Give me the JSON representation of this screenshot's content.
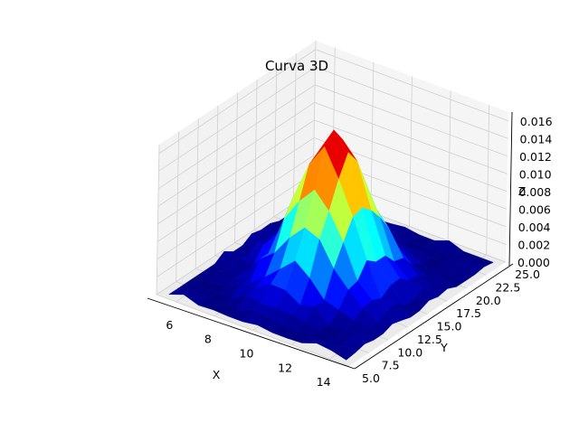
{
  "chart_data": {
    "type": "surface3d",
    "title": "Curva 3D",
    "xlabel": "X",
    "ylabel": "Y",
    "zlabel": "Z",
    "xlim": [
      5,
      15
    ],
    "ylim": [
      5,
      25
    ],
    "zlim": [
      0,
      0.017
    ],
    "xticks": [
      "6",
      "8",
      "10",
      "12",
      "14"
    ],
    "yticks": [
      "5.0",
      "7.5",
      "10.0",
      "12.5",
      "15.0",
      "17.5",
      "20.0",
      "22.5",
      "25.0"
    ],
    "zticks": [
      "0.000",
      "0.002",
      "0.004",
      "0.006",
      "0.008",
      "0.010",
      "0.012",
      "0.014",
      "0.016"
    ],
    "peak": {
      "x": 10,
      "y": 15,
      "z": 0.0167
    },
    "spread": {
      "x": 1.4,
      "y": 2.8
    },
    "colormap": "jet",
    "grid": true
  }
}
